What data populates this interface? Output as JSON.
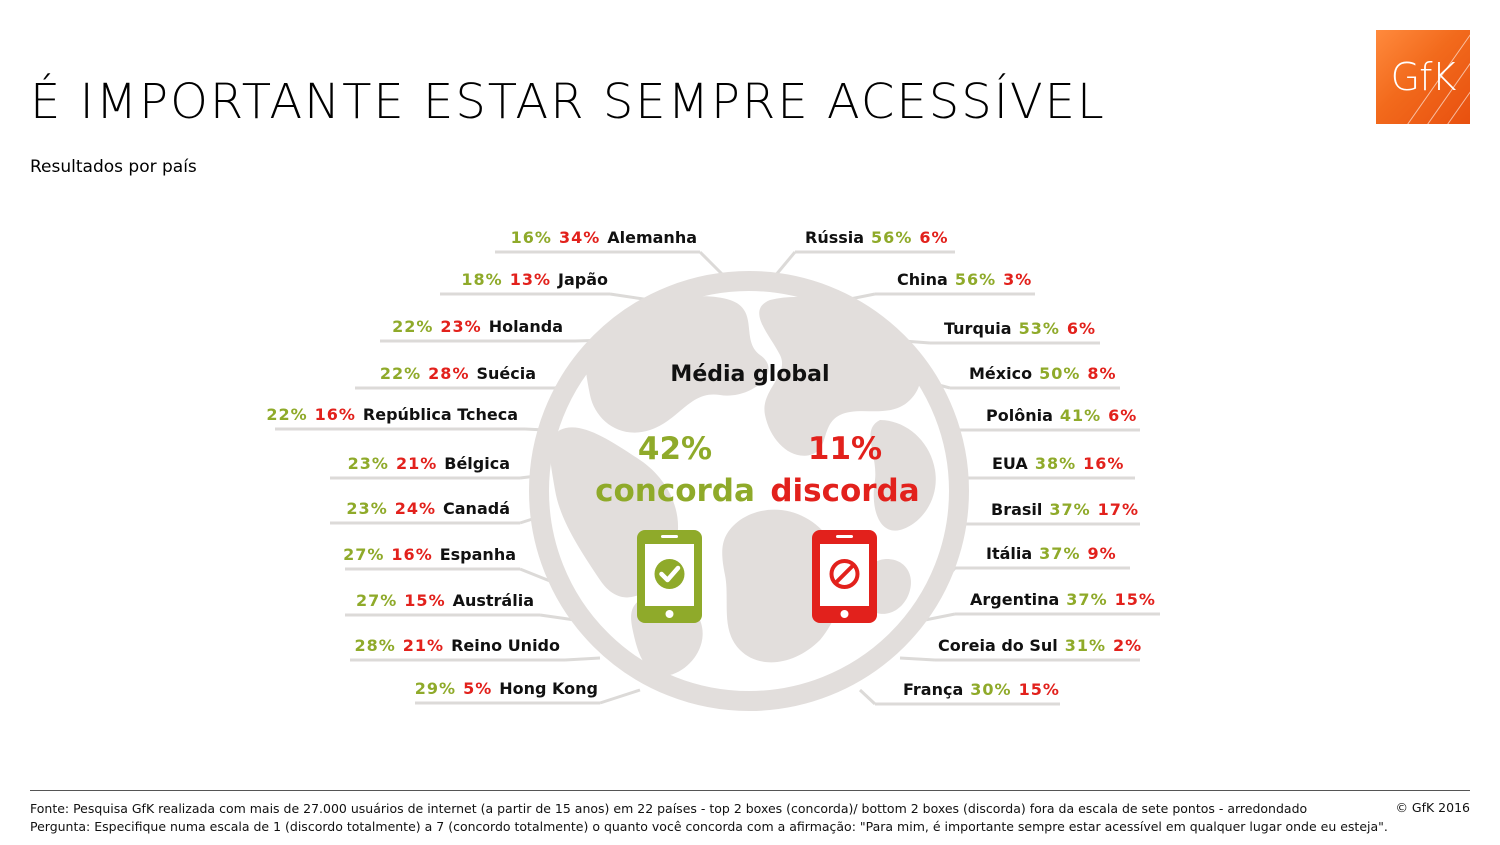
{
  "title": "É IMPORTANTE ESTAR SEMPRE ACESSÍVEL",
  "subtitle": "Resultados por país",
  "logo": "GfK",
  "center": {
    "label": "Média global",
    "agree_value": "42%",
    "agree_label": "concorda",
    "disagree_value": "11%",
    "disagree_label": "discorda"
  },
  "colors": {
    "agree": "#8faa2a",
    "disagree": "#e2211c",
    "globe": "#e2dedc",
    "logo": "#f26a1c"
  },
  "icons": {
    "agree": "phone-check-icon",
    "disagree": "phone-block-icon",
    "globe": "globe-icon"
  },
  "chart_data": {
    "type": "table",
    "title": "É IMPORTANTE ESTAR SEMPRE ACESSÍVEL",
    "columns": [
      "concorda",
      "discorda"
    ],
    "global": {
      "concorda": 42,
      "discorda": 11
    },
    "left": [
      {
        "country": "Alemanha",
        "agree": "16%",
        "disagree": "34%"
      },
      {
        "country": "Japão",
        "agree": "18%",
        "disagree": "13%"
      },
      {
        "country": "Holanda",
        "agree": "22%",
        "disagree": "23%"
      },
      {
        "country": "Suécia",
        "agree": "22%",
        "disagree": "28%"
      },
      {
        "country": "República Tcheca",
        "agree": "22%",
        "disagree": "16%"
      },
      {
        "country": "Bélgica",
        "agree": "23%",
        "disagree": "21%"
      },
      {
        "country": "Canadá",
        "agree": "23%",
        "disagree": "24%"
      },
      {
        "country": "Espanha",
        "agree": "27%",
        "disagree": "16%"
      },
      {
        "country": "Austrália",
        "agree": "27%",
        "disagree": "15%"
      },
      {
        "country": "Reino Unido",
        "agree": "28%",
        "disagree": "21%"
      },
      {
        "country": "Hong Kong",
        "agree": "29%",
        "disagree": "5%"
      }
    ],
    "right": [
      {
        "country": "Rússia",
        "agree": "56%",
        "disagree": "6%"
      },
      {
        "country": "China",
        "agree": "56%",
        "disagree": "3%"
      },
      {
        "country": "Turquia",
        "agree": "53%",
        "disagree": "6%"
      },
      {
        "country": "México",
        "agree": "50%",
        "disagree": "8%"
      },
      {
        "country": "Polônia",
        "agree": "41%",
        "disagree": "6%"
      },
      {
        "country": "EUA",
        "agree": "38%",
        "disagree": "16%"
      },
      {
        "country": "Brasil",
        "agree": "37%",
        "disagree": "17%"
      },
      {
        "country": "Itália",
        "agree": "37%",
        "disagree": "9%"
      },
      {
        "country": "Argentina",
        "agree": "37%",
        "disagree": "15%"
      },
      {
        "country": "Coreia do Sul",
        "agree": "31%",
        "disagree": "2%"
      },
      {
        "country": "França",
        "agree": "30%",
        "disagree": "15%"
      }
    ]
  },
  "footer": {
    "line1": "Fonte: Pesquisa GfK realizada com mais de 27.000 usuários de internet (a partir de 15 anos) em 22 países - top 2 boxes (concorda)/ bottom 2 boxes (discorda) fora da escala de sete pontos - arredondado",
    "line2": "Pergunta: Especifique numa escala de 1 (discordo totalmente) a 7 (concordo totalmente) o quanto você concorda com a afirmação: \"Para mim, é importante sempre estar acessível em qualquer lugar onde eu esteja\".",
    "copyright": "© GfK 2016"
  }
}
